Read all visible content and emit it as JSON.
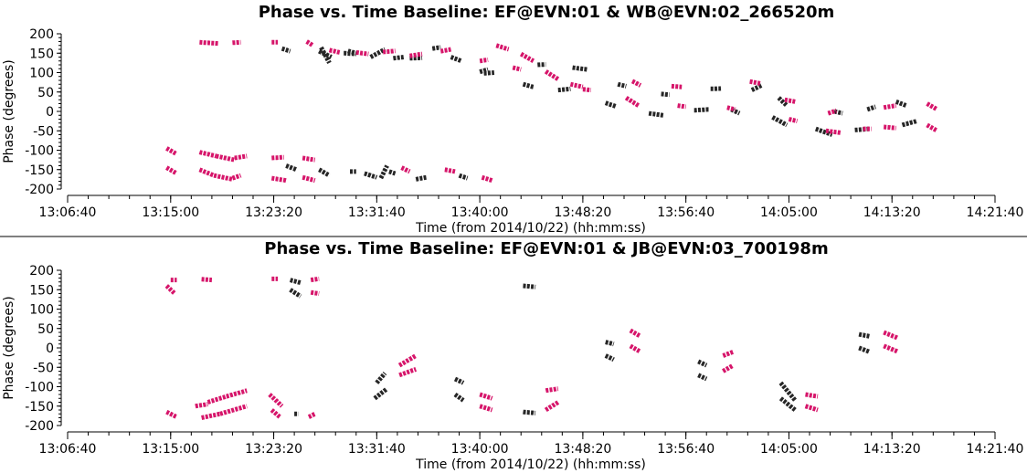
{
  "chart_data": [
    {
      "type": "scatter",
      "title": "Phase vs. Time Baseline: EF@EVN:01 & WB@EVN:02_266520m",
      "xlabel": "Time (from 2014/10/22) (hh:mm:ss)",
      "ylabel": "Phase (degrees)",
      "x_ticks": [
        "13:06:40",
        "13:15:00",
        "13:23:20",
        "13:31:40",
        "13:40:00",
        "13:48:20",
        "13:56:40",
        "14:05:00",
        "14:13:20",
        "14:21:40"
      ],
      "y_ticks": [
        "200",
        "150",
        "100",
        "50",
        "0",
        "-50",
        "-100",
        "-150",
        "-200"
      ],
      "xlim": [
        "13:06:40",
        "14:21:40"
      ],
      "ylim": [
        -200,
        200
      ],
      "colors": {
        "black": "#262626",
        "pink": "#d6156a"
      },
      "series": [
        {
          "color": "black",
          "segments": [
            [
              "13:24:00",
              162,
              "13:24:40",
              155
            ],
            [
              "13:27:00",
              155,
              "13:28:00",
              140
            ],
            [
              "13:29:00",
              150,
              "13:30:00",
              148
            ],
            [
              "13:31:10",
              140,
              "13:32:20",
              160
            ],
            [
              "13:34:20",
              137,
              "13:35:20",
              138
            ],
            [
              "13:37:40",
              140,
              "13:38:30",
              130
            ],
            [
              "13:40:20",
              98,
              "13:41:10",
              100
            ],
            [
              "13:43:30",
              70,
              "13:44:20",
              63
            ],
            [
              "13:46:20",
              55,
              "13:47:20",
              58
            ],
            [
              "13:50:10",
              22,
              "13:51:00",
              13
            ],
            [
              "13:53:40",
              -5,
              "13:54:50",
              -10
            ],
            [
              "13:57:20",
              3,
              "13:58:30",
              5
            ],
            [
              "14:00:20",
              5,
              "14:01:00",
              -5
            ],
            [
              "14:03:40",
              -15,
              "14:04:50",
              -35
            ],
            [
              "14:07:10",
              -45,
              "14:08:30",
              -60
            ],
            [
              "14:10:20",
              -48,
              "14:11:30",
              -45
            ],
            [
              "14:14:10",
              -35,
              "14:15:20",
              -25
            ],
            [
              "13:27:10",
              165,
              "13:27:50",
              125
            ],
            [
              "13:29:20",
              156,
              "13:30:00",
              150
            ],
            [
              "13:33:00",
              137,
              "13:33:50",
              140
            ],
            [
              "13:36:10",
              162,
              "13:36:50",
              165
            ],
            [
              "13:40:00",
              102,
              "13:40:40",
              108
            ],
            [
              "13:44:40",
              120,
              "13:45:20",
              121
            ],
            [
              "13:47:30",
              113,
              "13:48:40",
              108
            ],
            [
              "13:51:10",
              70,
              "13:51:50",
              65
            ],
            [
              "13:54:40",
              45,
              "13:55:20",
              43
            ],
            [
              "13:58:40",
              58,
              "13:59:30",
              59
            ],
            [
              "14:02:00",
              55,
              "14:02:50",
              68
            ],
            [
              "14:04:10",
              35,
              "14:04:50",
              15
            ],
            [
              "14:08:40",
              0,
              "14:09:20",
              -5
            ],
            [
              "14:11:20",
              5,
              "14:12:00",
              12
            ],
            [
              "14:13:40",
              25,
              "14:14:30",
              15
            ],
            [
              "13:24:20",
              -140,
              "13:25:10",
              -150
            ],
            [
              "13:27:00",
              -150,
              "13:27:50",
              -165
            ],
            [
              "13:30:40",
              -160,
              "13:31:40",
              -170
            ],
            [
              "13:32:40",
              -155,
              "13:33:10",
              -160
            ],
            [
              "13:34:50",
              -175,
              "13:35:40",
              -170
            ],
            [
              "13:38:20",
              -165,
              "13:39:00",
              -172
            ],
            [
              "13:32:00",
              -172,
              "13:32:30",
              -140
            ],
            [
              "13:29:30",
              -155,
              "13:30:00",
              -155
            ]
          ]
        },
        {
          "color": "pink",
          "segments": [
            [
              "13:14:40",
              -95,
              "13:15:30",
              -110
            ],
            [
              "13:14:40",
              -145,
              "13:15:30",
              -160
            ],
            [
              "13:17:20",
              -105,
              "13:18:40",
              -115
            ],
            [
              "13:18:40",
              -115,
              "13:20:10",
              -125
            ],
            [
              "13:20:10",
              -120,
              "13:21:10",
              -115
            ],
            [
              "13:17:20",
              -150,
              "13:18:30",
              -165
            ],
            [
              "13:18:30",
              -165,
              "13:20:00",
              -175
            ],
            [
              "13:20:00",
              -172,
              "13:20:40",
              -165
            ],
            [
              "13:23:10",
              -120,
              "13:24:10",
              -118
            ],
            [
              "13:23:10",
              -172,
              "13:24:20",
              -178
            ],
            [
              "13:25:40",
              -120,
              "13:26:40",
              -125
            ],
            [
              "13:25:40",
              -170,
              "13:26:40",
              -178
            ],
            [
              "13:17:20",
              178,
              "13:18:50",
              175
            ],
            [
              "13:20:00",
              177,
              "13:20:40",
              178
            ],
            [
              "13:23:10",
              178,
              "13:23:40",
              178
            ],
            [
              "13:26:00",
              180,
              "13:26:30",
              170
            ],
            [
              "13:27:50",
              158,
              "13:28:40",
              152
            ],
            [
              "13:30:00",
              152,
              "13:31:00",
              148
            ],
            [
              "13:32:10",
              153,
              "13:33:10",
              156
            ],
            [
              "13:34:20",
              143,
              "13:35:20",
              148
            ],
            [
              "13:36:50",
              155,
              "13:37:40",
              160
            ],
            [
              "13:40:00",
              130,
              "13:40:40",
              133
            ],
            [
              "13:41:20",
              170,
              "13:42:20",
              160
            ],
            [
              "13:43:20",
              148,
              "13:44:20",
              130
            ],
            [
              "13:42:40",
              113,
              "13:43:20",
              108
            ],
            [
              "13:45:20",
              103,
              "13:46:20",
              83
            ],
            [
              "13:47:20",
              70,
              "13:48:20",
              63
            ],
            [
              "13:48:20",
              57,
              "13:49:00",
              55
            ],
            [
              "13:51:50",
              35,
              "13:52:50",
              15
            ],
            [
              "13:52:20",
              78,
              "13:53:00",
              67
            ],
            [
              "13:55:30",
              65,
              "13:56:20",
              63
            ],
            [
              "13:56:00",
              15,
              "13:56:40",
              12
            ],
            [
              "14:00:00",
              10,
              "14:00:40",
              5
            ],
            [
              "14:01:50",
              77,
              "14:02:40",
              72
            ],
            [
              "14:04:40",
              30,
              "14:05:30",
              25
            ],
            [
              "14:05:00",
              -20,
              "14:05:40",
              -25
            ],
            [
              "14:08:00",
              -50,
              "14:09:10",
              -55
            ],
            [
              "14:08:10",
              -5,
              "14:08:50",
              2
            ],
            [
              "14:11:00",
              -45,
              "14:11:40",
              -45
            ],
            [
              "14:12:40",
              10,
              "14:13:40",
              15
            ],
            [
              "14:12:40",
              -40,
              "14:13:40",
              -43
            ],
            [
              "14:16:10",
              20,
              "14:17:00",
              5
            ],
            [
              "14:16:10",
              -35,
              "14:17:00",
              -50
            ],
            [
              "13:37:10",
              -150,
              "13:38:00",
              -155
            ],
            [
              "13:40:10",
              -170,
              "13:41:00",
              -178
            ],
            [
              "13:33:40",
              -145,
              "13:34:20",
              -155
            ]
          ]
        }
      ]
    },
    {
      "type": "scatter",
      "title": "Phase vs. Time Baseline: EF@EVN:01 & JB@EVN:03_700198m",
      "xlabel": "Time (from 2014/10/22) (hh:mm:ss)",
      "ylabel": "Phase (degrees)",
      "x_ticks": [
        "13:06:40",
        "13:15:00",
        "13:23:20",
        "13:31:40",
        "13:40:00",
        "13:48:20",
        "13:56:40",
        "14:05:00",
        "14:13:20",
        "14:21:40"
      ],
      "y_ticks": [
        "200",
        "150",
        "100",
        "50",
        "0",
        "-50",
        "-100",
        "-150",
        "-200"
      ],
      "xlim": [
        "13:06:40",
        "14:21:40"
      ],
      "ylim": [
        -200,
        200
      ],
      "colors": {
        "black": "#262626",
        "pink": "#d6156a"
      },
      "series": [
        {
          "color": "black",
          "segments": [
            [
              "13:24:40",
              175,
              "13:25:30",
              168
            ],
            [
              "13:24:40",
              150,
              "13:25:30",
              133
            ],
            [
              "13:25:00",
              -170,
              "13:25:20",
              -170
            ],
            [
              "13:31:30",
              -130,
              "13:32:30",
              -105
            ],
            [
              "13:31:40",
              -90,
              "13:32:20",
              -65
            ],
            [
              "13:38:00",
              -80,
              "13:38:40",
              -90
            ],
            [
              "13:38:00",
              -120,
              "13:38:40",
              -135
            ],
            [
              "13:43:30",
              160,
              "13:44:30",
              157
            ],
            [
              "13:43:30",
              -165,
              "13:44:30",
              -168
            ],
            [
              "13:50:10",
              15,
              "13:50:50",
              10
            ],
            [
              "13:50:10",
              -20,
              "13:50:50",
              -30
            ],
            [
              "13:57:40",
              -35,
              "13:58:20",
              -45
            ],
            [
              "13:57:40",
              -70,
              "13:58:20",
              -80
            ],
            [
              "14:04:20",
              -90,
              "14:05:30",
              -135
            ],
            [
              "14:04:20",
              -130,
              "14:05:30",
              -160
            ],
            [
              "14:10:40",
              35,
              "14:11:30",
              30
            ],
            [
              "14:10:40",
              0,
              "14:11:30",
              -10
            ]
          ]
        },
        {
          "color": "pink",
          "segments": [
            [
              "13:14:40",
              160,
              "13:15:20",
              140
            ],
            [
              "13:15:00",
              175,
              "13:15:30",
              175
            ],
            [
              "13:17:30",
              177,
              "13:18:20",
              175
            ],
            [
              "13:23:10",
              178,
              "13:23:40",
              178
            ],
            [
              "13:26:20",
              175,
              "13:27:00",
              178
            ],
            [
              "13:26:20",
              143,
              "13:27:00",
              140
            ],
            [
              "13:14:40",
              -165,
              "13:15:30",
              -178
            ],
            [
              "13:17:00",
              -150,
              "13:18:00",
              -145
            ],
            [
              "13:18:00",
              -140,
              "13:19:30",
              -125
            ],
            [
              "13:19:30",
              -125,
              "13:21:10",
              -110
            ],
            [
              "13:17:30",
              -180,
              "13:19:00",
              -170
            ],
            [
              "13:19:00",
              -170,
              "13:21:10",
              -150
            ],
            [
              "13:23:00",
              -120,
              "13:24:00",
              -150
            ],
            [
              "13:23:10",
              -160,
              "13:23:50",
              -178
            ],
            [
              "13:26:10",
              -178,
              "13:26:40",
              -170
            ],
            [
              "13:33:30",
              -45,
              "13:34:50",
              -20
            ],
            [
              "13:33:30",
              -70,
              "13:34:50",
              -55
            ],
            [
              "13:40:00",
              -120,
              "13:41:00",
              -130
            ],
            [
              "13:40:00",
              -150,
              "13:41:00",
              -160
            ],
            [
              "13:45:20",
              -110,
              "13:46:20",
              -105
            ],
            [
              "13:45:20",
              -160,
              "13:46:20",
              -140
            ],
            [
              "13:52:10",
              45,
              "13:53:00",
              30
            ],
            [
              "13:52:10",
              5,
              "13:53:00",
              -10
            ],
            [
              "13:59:40",
              -20,
              "14:00:30",
              -10
            ],
            [
              "13:59:40",
              -60,
              "14:00:30",
              -45
            ],
            [
              "14:06:20",
              -120,
              "14:07:20",
              -125
            ],
            [
              "14:06:20",
              -150,
              "14:07:20",
              -160
            ],
            [
              "14:12:40",
              40,
              "14:13:50",
              25
            ],
            [
              "14:12:40",
              5,
              "14:13:50",
              -10
            ]
          ]
        }
      ]
    }
  ]
}
